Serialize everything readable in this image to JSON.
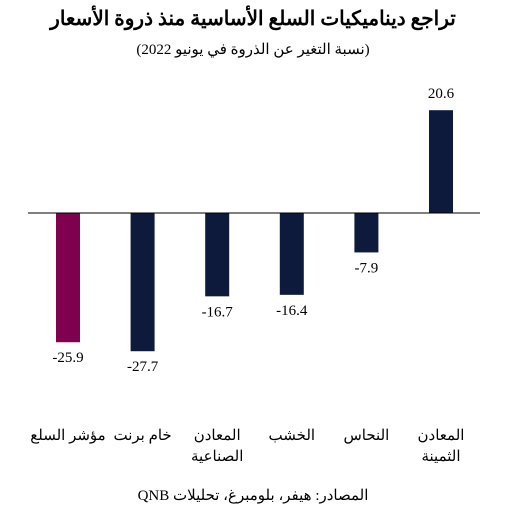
{
  "chart_data": {
    "type": "bar",
    "title": "تراجع ديناميكيات السلع الأساسية منذ ذروة الأسعار",
    "subtitle": "(نسبة التغير عن الذروة في يونيو 2022)",
    "categories": [
      [
        "المعادن",
        "الثمينة"
      ],
      [
        "النحاس"
      ],
      [
        "الخشب"
      ],
      [
        "المعادن",
        "الصناعية"
      ],
      [
        "خام برنت"
      ],
      [
        "مؤشر السلع"
      ]
    ],
    "values": [
      20.6,
      -7.9,
      -16.4,
      -16.7,
      -27.7,
      -25.9
    ],
    "value_labels": [
      "20.6",
      "-7.9",
      "-16.4",
      "-16.7",
      "-27.7",
      "-25.9"
    ],
    "colors": [
      "#0e1a3c",
      "#0e1a3c",
      "#0e1a3c",
      "#0e1a3c",
      "#0e1a3c",
      "#800050"
    ],
    "ylim": [
      -30,
      30
    ],
    "grid": false,
    "xlabel": "",
    "ylabel": ""
  },
  "source": "المصادر: هيفر، بلومبرغ، تحليلات QNB"
}
